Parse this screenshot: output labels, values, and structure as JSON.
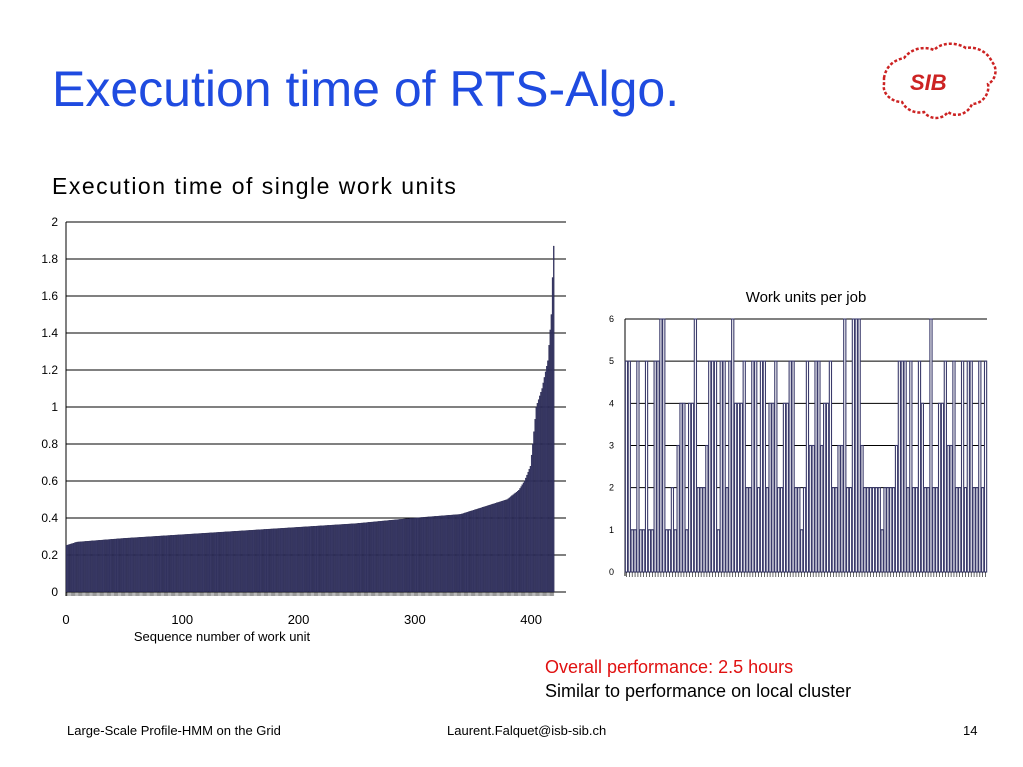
{
  "slide": {
    "title": "Execution time of RTS-Algo.",
    "logo_text": "SIB",
    "performance_line1": "Overall performance: 2.5 hours",
    "performance_line2": "Similar to performance on local cluster",
    "footer_left": "Large-Scale Profile-HMM on the Grid",
    "footer_center": "Laurent.Falquet@isb-sib.ch",
    "page_number": "14",
    "colors": {
      "title": "#1f4be0",
      "bar_fill": "#3b3b6b",
      "highlight": "#e01010",
      "logo": "#cc2222"
    }
  },
  "chart_data": [
    {
      "type": "bar",
      "title": "Execution time of single work units",
      "xlabel": "Sequence number of work unit",
      "ylabel": "",
      "ylim": [
        0,
        2
      ],
      "yticks": [
        "0",
        "0.2",
        "0.4",
        "0.6",
        "0.8",
        "1",
        "1.2",
        "1.4",
        "1.6",
        "1.8",
        "2"
      ],
      "xticks": [
        {
          "value": 0,
          "label": "0"
        },
        {
          "value": 100,
          "label": "100"
        },
        {
          "value": 200,
          "label": "200"
        },
        {
          "value": 300,
          "label": "300"
        },
        {
          "value": 400,
          "label": "400"
        }
      ],
      "xlim": [
        0,
        430
      ],
      "grid": true,
      "n": 420,
      "profile": [
        [
          0,
          0.25
        ],
        [
          10,
          0.27
        ],
        [
          50,
          0.29
        ],
        [
          100,
          0.31
        ],
        [
          150,
          0.33
        ],
        [
          200,
          0.35
        ],
        [
          250,
          0.37
        ],
        [
          300,
          0.4
        ],
        [
          340,
          0.42
        ],
        [
          360,
          0.46
        ],
        [
          380,
          0.5
        ],
        [
          390,
          0.55
        ],
        [
          395,
          0.6
        ],
        [
          400,
          0.68
        ],
        [
          402,
          0.8
        ],
        [
          405,
          1.0
        ],
        [
          410,
          1.1
        ],
        [
          415,
          1.25
        ],
        [
          418,
          1.5
        ],
        [
          419,
          1.7
        ],
        [
          420,
          1.87
        ]
      ]
    },
    {
      "type": "bar",
      "title": "Work units per job",
      "ylim": [
        0,
        6
      ],
      "yticks": [
        "0",
        "1",
        "2",
        "3",
        "4",
        "5",
        "6"
      ],
      "grid": true,
      "values": [
        5,
        5,
        1,
        1,
        5,
        1,
        1,
        5,
        1,
        1,
        5,
        5,
        6,
        6,
        1,
        1,
        2,
        1,
        3,
        4,
        4,
        1,
        4,
        4,
        6,
        2,
        2,
        2,
        3,
        5,
        5,
        5,
        1,
        5,
        5,
        2,
        5,
        6,
        4,
        4,
        4,
        5,
        2,
        2,
        5,
        5,
        2,
        5,
        5,
        2,
        4,
        4,
        5,
        2,
        2,
        4,
        4,
        5,
        5,
        2,
        2,
        1,
        2,
        5,
        3,
        3,
        5,
        5,
        3,
        4,
        4,
        5,
        2,
        2,
        3,
        3,
        6,
        2,
        2,
        6,
        6,
        6,
        3,
        2,
        2,
        2,
        2,
        2,
        2,
        1,
        2,
        2,
        2,
        2,
        3,
        5,
        5,
        5,
        2,
        5,
        2,
        2,
        5,
        4,
        2,
        2,
        6,
        2,
        2,
        4,
        4,
        5,
        3,
        3,
        5,
        2,
        2,
        5,
        2,
        5,
        5,
        2,
        2,
        5,
        2,
        5
      ]
    }
  ]
}
